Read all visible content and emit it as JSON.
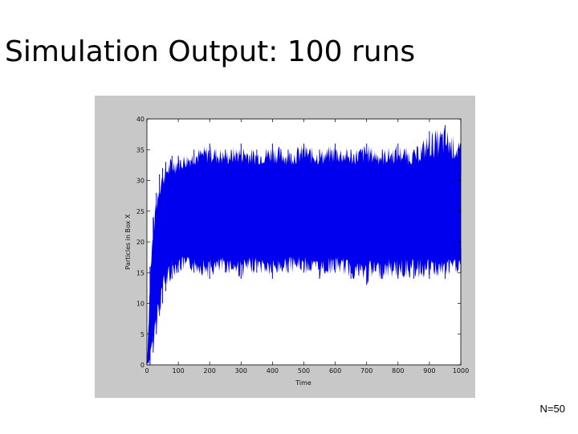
{
  "slide": {
    "title": "Simulation Output: 100 runs",
    "note": "N=50"
  },
  "colors": {
    "series": "#0000ee",
    "figure_bg": "#c8c8c8",
    "plot_bg": "#ffffff"
  },
  "chart_data": {
    "type": "line",
    "title": "",
    "xlabel": "Time",
    "ylabel": "Particles in Box X",
    "xlim": [
      0,
      1000
    ],
    "ylim": [
      0,
      40
    ],
    "xticks": [
      0,
      100,
      200,
      300,
      400,
      500,
      600,
      700,
      800,
      900,
      1000
    ],
    "yticks": [
      0,
      5,
      10,
      15,
      20,
      25,
      30,
      35,
      40
    ],
    "runs": 100,
    "series": [
      {
        "envelope": true,
        "x": [
          0,
          10,
          20,
          30,
          40,
          50,
          60,
          80,
          100,
          150,
          200,
          250,
          300,
          350,
          400,
          450,
          500,
          550,
          600,
          650,
          700,
          750,
          800,
          850,
          900,
          950,
          1000
        ],
        "upper": [
          0,
          16,
          24,
          28,
          31,
          32,
          33,
          34,
          34,
          35,
          36,
          35,
          36,
          35,
          36,
          35,
          36,
          35,
          36,
          35,
          36,
          35,
          36,
          35,
          38,
          39,
          36
        ],
        "core_upper": [
          0,
          8,
          17,
          22,
          25,
          27,
          28,
          29,
          30,
          31,
          31,
          31,
          31,
          31,
          31,
          31,
          31,
          31,
          31,
          31,
          31,
          31,
          31,
          31,
          31,
          31,
          31
        ],
        "core_lower": [
          0,
          3,
          8,
          12,
          15,
          17,
          18,
          19,
          19,
          19,
          19,
          19,
          19,
          19,
          19,
          19,
          19,
          19,
          19,
          19,
          19,
          19,
          19,
          19,
          19,
          19,
          19
        ],
        "lower": [
          0,
          0,
          2,
          5,
          8,
          10,
          12,
          14,
          15,
          15,
          14,
          15,
          14,
          15,
          14,
          15,
          15,
          14,
          15,
          14,
          13,
          14,
          14,
          14,
          14,
          14,
          15
        ]
      }
    ]
  }
}
